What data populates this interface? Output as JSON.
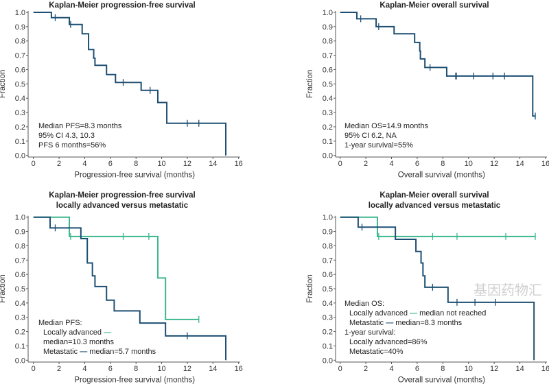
{
  "colors": {
    "overall": "#1d4f73",
    "metastatic": "#1d4f73",
    "locally_advanced": "#3cb88c",
    "axis": "#555555"
  },
  "watermark": "基因药物汇",
  "chart_data": [
    {
      "type": "line",
      "step": true,
      "title": [
        "Kaplan-Meier progression-free survival"
      ],
      "xlabel": "Progression-free survival (months)",
      "ylabel": "Fraction",
      "xlim": [
        0,
        16
      ],
      "ylim": [
        0,
        1
      ],
      "xticks": [
        "0",
        "2",
        "4",
        "6",
        "8",
        "10",
        "12",
        "14",
        "16"
      ],
      "yticks": [
        "0.0",
        "0.1",
        "0.2",
        "0.3",
        "0.4",
        "0.5",
        "0.6",
        "0.7",
        "0.8",
        "0.9",
        "1.0"
      ],
      "series": [
        {
          "color_key": "overall",
          "steps": [
            [
              0,
              1.0
            ],
            [
              1.4,
              0.963
            ],
            [
              2.8,
              0.915
            ],
            [
              3.8,
              0.85
            ],
            [
              4.3,
              0.74
            ],
            [
              4.7,
              0.68
            ],
            [
              4.8,
              0.63
            ],
            [
              5.7,
              0.565
            ],
            [
              6.4,
              0.51
            ],
            [
              8.4,
              0.455
            ],
            [
              9.7,
              0.37
            ],
            [
              10.4,
              0.225
            ],
            [
              15.0,
              0.0
            ]
          ],
          "end": 15.0,
          "censored": [
            1.7,
            2.9,
            7.0,
            9.1,
            12.0,
            12.9
          ]
        }
      ],
      "annotation": [
        {
          "indent": false,
          "parts": [
            {
              "text": "Median PFS=8.3 months"
            }
          ]
        },
        {
          "indent": false,
          "parts": [
            {
              "text": "95% CI 4.3, 10.3"
            }
          ]
        },
        {
          "indent": false,
          "parts": [
            {
              "text": "PFS 6 months=56%"
            }
          ]
        }
      ]
    },
    {
      "type": "line",
      "step": true,
      "title": [
        "Kaplan-Meier overall survival"
      ],
      "xlabel": "Overall survival (months)",
      "ylabel": "Fraction",
      "xlim": [
        0,
        16
      ],
      "ylim": [
        0,
        1
      ],
      "xticks": [
        "0",
        "2",
        "4",
        "6",
        "8",
        "10",
        "12",
        "14",
        "16"
      ],
      "yticks": [
        "0.0",
        "0.1",
        "0.2",
        "0.3",
        "0.4",
        "0.5",
        "0.6",
        "0.7",
        "0.8",
        "0.9",
        "1.0"
      ],
      "series": [
        {
          "color_key": "overall",
          "steps": [
            [
              0,
              1.0
            ],
            [
              1.3,
              0.955
            ],
            [
              2.8,
              0.9
            ],
            [
              4.2,
              0.85
            ],
            [
              5.8,
              0.79
            ],
            [
              6.2,
              0.73
            ],
            [
              6.25,
              0.675
            ],
            [
              6.6,
              0.615
            ],
            [
              8.3,
              0.555
            ],
            [
              15.0,
              0.275
            ]
          ],
          "end": 15.2,
          "censored": [
            1.6,
            3.0,
            7.0,
            9.0,
            9.05,
            10.4,
            11.9,
            12.8,
            15.2
          ]
        }
      ],
      "annotation": [
        {
          "indent": false,
          "parts": [
            {
              "text": "Median OS=14.9 months"
            }
          ]
        },
        {
          "indent": false,
          "parts": [
            {
              "text": "95% CI 6.2, NA"
            }
          ]
        },
        {
          "indent": false,
          "parts": [
            {
              "text": "1-year survival=55%"
            }
          ]
        }
      ]
    },
    {
      "type": "line",
      "step": true,
      "title": [
        "Kaplan-Meier progression-free survival",
        "locally advanced versus metastatic"
      ],
      "xlabel": "Progression-free survival (months)",
      "ylabel": "Fraction",
      "xlim": [
        0,
        16
      ],
      "ylim": [
        0,
        1
      ],
      "xticks": [
        "0",
        "2",
        "4",
        "6",
        "8",
        "10",
        "12",
        "14",
        "16"
      ],
      "yticks": [
        "0.0",
        "0.1",
        "0.2",
        "0.3",
        "0.4",
        "0.5",
        "0.6",
        "0.7",
        "0.8",
        "0.9",
        "1.0"
      ],
      "series": [
        {
          "name": "Locally advanced",
          "color_key": "locally_advanced",
          "steps": [
            [
              0,
              1.0
            ],
            [
              2.8,
              0.865
            ],
            [
              9.7,
              0.575
            ],
            [
              10.3,
              0.285
            ]
          ],
          "end": 12.9,
          "censored": [
            2.9,
            7.0,
            9.0,
            12.9
          ]
        },
        {
          "name": "Metastatic",
          "color_key": "metastatic",
          "steps": [
            [
              0,
              1.0
            ],
            [
              1.3,
              0.925
            ],
            [
              3.7,
              0.85
            ],
            [
              4.2,
              0.68
            ],
            [
              4.6,
              0.59
            ],
            [
              4.8,
              0.515
            ],
            [
              5.7,
              0.42
            ],
            [
              6.3,
              0.345
            ],
            [
              8.3,
              0.26
            ],
            [
              10.3,
              0.17
            ],
            [
              15.0,
              0.0
            ]
          ],
          "end": 15.0,
          "censored": [
            1.7,
            12.0
          ]
        }
      ],
      "annotation": [
        {
          "indent": false,
          "parts": [
            {
              "text": "Median PFS:"
            }
          ]
        },
        {
          "indent": true,
          "parts": [
            {
              "text": "Locally advanced "
            },
            {
              "text": "—",
              "color_key": "locally_advanced"
            }
          ]
        },
        {
          "indent": true,
          "parts": [
            {
              "text": "median=10.3 months"
            }
          ]
        },
        {
          "indent": true,
          "parts": [
            {
              "text": "Metastatic "
            },
            {
              "text": "—",
              "color_key": "metastatic"
            },
            {
              "text": " median=5.7 months"
            }
          ]
        }
      ]
    },
    {
      "type": "line",
      "step": true,
      "title": [
        "Kaplan-Meier overall survival",
        "locally advanced versus metastatic"
      ],
      "xlabel": "Overall survival (months)",
      "ylabel": "Fraction",
      "xlim": [
        0,
        16
      ],
      "ylim": [
        0,
        1
      ],
      "xticks": [
        "0",
        "2",
        "4",
        "6",
        "8",
        "10",
        "12",
        "14",
        "16"
      ],
      "yticks": [
        "0.0",
        "0.1",
        "0.2",
        "0.3",
        "0.4",
        "0.5",
        "0.6",
        "0.7",
        "0.8",
        "0.9",
        "1.0"
      ],
      "series": [
        {
          "name": "Locally advanced",
          "color_key": "locally_advanced",
          "steps": [
            [
              0,
              1.0
            ],
            [
              2.9,
              0.865
            ]
          ],
          "end": 15.2,
          "censored": [
            3.0,
            7.2,
            9.1,
            12.9,
            15.2
          ]
        },
        {
          "name": "Metastatic",
          "color_key": "metastatic",
          "steps": [
            [
              0,
              1.0
            ],
            [
              1.4,
              0.93
            ],
            [
              4.3,
              0.845
            ],
            [
              5.9,
              0.76
            ],
            [
              6.3,
              0.68
            ],
            [
              6.45,
              0.59
            ],
            [
              6.6,
              0.51
            ],
            [
              8.4,
              0.405
            ],
            [
              15.1,
              0.0
            ]
          ],
          "end": 15.1,
          "censored": [
            1.7,
            7.2,
            9.1,
            10.5,
            12.1
          ]
        }
      ],
      "annotation": [
        {
          "indent": false,
          "parts": [
            {
              "text": "Median OS:"
            }
          ]
        },
        {
          "indent": true,
          "parts": [
            {
              "text": "Locally advanced "
            },
            {
              "text": "—",
              "color_key": "locally_advanced"
            },
            {
              "text": " median not reached"
            }
          ]
        },
        {
          "indent": true,
          "parts": [
            {
              "text": "Metastatic "
            },
            {
              "text": "—",
              "color_key": "metastatic"
            },
            {
              "text": " median=8.3 months"
            }
          ]
        },
        {
          "indent": false,
          "parts": [
            {
              "text": "1-year survival:"
            }
          ]
        },
        {
          "indent": true,
          "parts": [
            {
              "text": "Locally advanced=86%"
            }
          ]
        },
        {
          "indent": true,
          "parts": [
            {
              "text": "Metastatic=40%"
            }
          ]
        }
      ]
    }
  ]
}
